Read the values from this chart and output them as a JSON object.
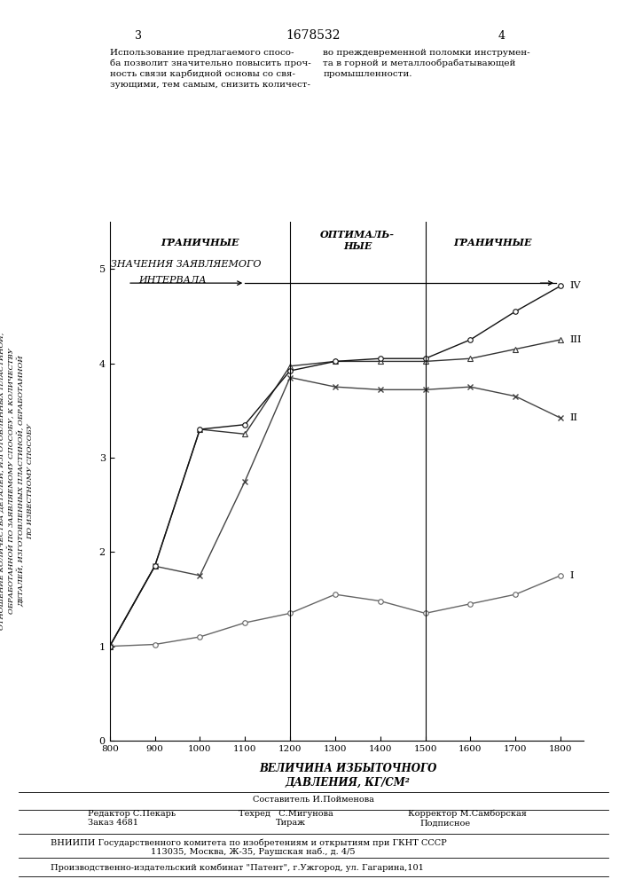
{
  "page_num_left": "3",
  "patent_num": "1678532",
  "page_num_right": "4",
  "text_left": "Использование предлагаемого спосо-\nба позволит значительно повысить проч-\nность связи карбидной основы со свя-\nзующими, тем самым, снизить количест-",
  "text_right": "во преждевременной поломки инструмен-\nта в горной и металлообрабатывающей\nпромышленности.",
  "legend_line1": "ЗНАЧЕНИЯ ЗАЯВЛЯЕМОГО",
  "legend_line2": "ИНТЕРВАЛА",
  "label_left": "ГРАНИЧНЫЕ",
  "label_center_line1": "ОПТИМАЛЬ-",
  "label_center_line2": "НЫЕ",
  "label_right": "ГРАНИЧНЫЕ",
  "xlabel_line1": "ВЕЛИЧИНА ИЗБЫТОЧНОГО",
  "xlabel_line2": "ДАВЛЕНИЯ, КГ/СМ²",
  "ylabel": "ОТНОШЕНИЕ КОЛИЧЕСТВА ДЕТАЛЕЙ, ИЗГОТОВЛЕННЫХ ПЛАСТИНОЙ,\nОБРАБОТАННОЙ ПО ЗАЯВЛЯЕМОМУ СПОСОБУ, К КОЛИЧЕСТВУ\nДЕТАЛЕЙ, ИЗГОТОВЛЕННЫХ ПЛАСТИНОЙ, ОБРАБОТАННОЙ\nПО ИЗВЕСТНОМУ СПОСОБУ",
  "xmin": 800,
  "xmax": 1800,
  "ymin": 0,
  "ymax": 5.5,
  "xticks": [
    800,
    900,
    1000,
    1100,
    1200,
    1300,
    1400,
    1500,
    1600,
    1700,
    1800
  ],
  "yticks": [
    0,
    1,
    2,
    3,
    4,
    5
  ],
  "vline1": 1200,
  "vline2": 1500,
  "series_I_x": [
    800,
    900,
    1000,
    1100,
    1200,
    1300,
    1400,
    1500,
    1600,
    1700,
    1800
  ],
  "series_I_y": [
    1.0,
    1.02,
    1.1,
    1.25,
    1.35,
    1.55,
    1.48,
    1.35,
    1.45,
    1.55,
    1.75
  ],
  "series_II_x": [
    800,
    900,
    1000,
    1100,
    1200,
    1300,
    1400,
    1500,
    1600,
    1700,
    1800
  ],
  "series_II_y": [
    1.0,
    1.85,
    1.75,
    2.75,
    3.85,
    3.75,
    3.72,
    3.72,
    3.75,
    3.65,
    3.42
  ],
  "series_III_x": [
    800,
    900,
    1000,
    1100,
    1200,
    1300,
    1400,
    1500,
    1600,
    1700,
    1800
  ],
  "series_III_y": [
    1.0,
    1.85,
    3.3,
    3.25,
    3.97,
    4.02,
    4.02,
    4.02,
    4.05,
    4.15,
    4.25
  ],
  "series_IV_x": [
    800,
    900,
    1000,
    1100,
    1200,
    1300,
    1400,
    1500,
    1600,
    1700,
    1800
  ],
  "series_IV_y": [
    1.0,
    1.85,
    3.3,
    3.35,
    3.92,
    4.02,
    4.05,
    4.05,
    4.25,
    4.55,
    4.82
  ],
  "footer_sestavitel": "Составитель И.Пойменова",
  "footer_redaktor": "Редактор С.Пекарь",
  "footer_tehred": "Техред   С.Мигунова",
  "footer_korrektor": "Корректор М.Самборская",
  "footer_zakaz": "Заказ 4681",
  "footer_tirazh": "Тираж",
  "footer_podpisnoe": "Подписное",
  "footer_vniip": "ВНИИПИ Государственного комитета по изобретениям и открытиям при ГКНТ СССР",
  "footer_addr": "113035, Москва, Ж-35, Раушская наб., д. 4/5",
  "footer_patent": "Производственно-издательский комбинат \"Патент\", г.Ужгород, ул. Гагарина,101"
}
